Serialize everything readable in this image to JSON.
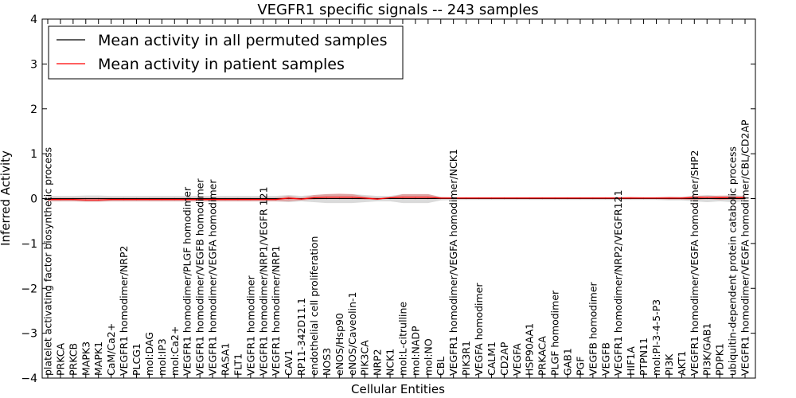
{
  "chart_data": {
    "type": "line",
    "title": "VEGFR1 specific signals -- 243 samples",
    "xlabel": "Cellular Entities",
    "ylabel": "Inferred Activity",
    "ylim": [
      -4,
      4
    ],
    "yticks": [
      "−4",
      "−3",
      "−2",
      "−1",
      "0",
      "1",
      "2",
      "3",
      "4"
    ],
    "grid": false,
    "legend_position": "top-left",
    "categories": [
      "platelet activating factor biosynthetic process",
      "PRKCA",
      "PRKCB",
      "MAPK3",
      "MAPK1",
      "CaM/Ca2+",
      "VEGFR1 homodimer/NRP2",
      "PLCG1",
      "mol:DAG",
      "mol:IP3",
      "mol:Ca2+",
      "VEGFR1 homodimer/PLGF homodimer",
      "VEGFR1 homodimer/VEGFB homodimer",
      "VEGFR1 homodimer/VEGFA homodimer",
      "RASA1",
      "FLT1",
      "VEGFR1 homodimer",
      "VEGFR1 homodimer/NRP1/VEGFR 121",
      "VEGFR1 homodimer/NRP1",
      "CAV1",
      "RP11-342D11.1",
      "endothelial cell proliferation",
      "NOS3",
      "eNOS/Hsp90",
      "eNOS/Caveolin-1",
      "PIK3CA",
      "NRP2",
      "NCK1",
      "mol:L-citrulline",
      "mol:NADP",
      "mol:NO",
      "CBL",
      "VEGFR1 homodimer/VEGFA homodimer/NCK1",
      "PIK3R1",
      "VEGFA homodimer",
      "CALM1",
      "CD2AP",
      "VEGFA",
      "HSP90AA1",
      "PRKACA",
      "PLGF homodimer",
      "GAB1",
      "PGF",
      "VEGFB homodimer",
      "VEGFB",
      "VEGFR1 homodimer/NRP2/VEGFR121",
      "HIF1A",
      "PTPN11",
      "mol:PI-3-4-5-P3",
      "PI3K",
      "AKT1",
      "VEGFR1 homodimer/VEGFA homodimer/SHP2",
      "PI3K/GAB1",
      "PDPK1",
      "ubiquitin-dependent protein catabolic process",
      "VEGFR1 homodimer/VEGFA homodimer/CBL/CD2AP"
    ],
    "series": [
      {
        "name": "Mean activity in all permuted samples",
        "color": "#000000",
        "values": [
          0,
          0,
          0,
          0,
          0,
          0,
          0,
          0,
          0,
          0,
          0,
          0,
          0,
          0,
          0,
          0,
          0,
          0,
          0,
          0,
          0,
          0,
          0,
          0,
          0,
          0,
          0,
          0,
          0,
          0,
          0,
          0,
          0,
          0,
          0,
          0,
          0,
          0,
          0,
          0,
          0,
          0,
          0,
          0,
          0,
          0,
          0,
          0,
          0,
          0,
          0,
          0,
          0,
          0,
          0,
          0
        ],
        "band_upper": [
          0.06,
          0.06,
          0.06,
          0.07,
          0.07,
          0.06,
          0.06,
          0.06,
          0.06,
          0.06,
          0.06,
          0.06,
          0.06,
          0.06,
          0.06,
          0.06,
          0.06,
          0.06,
          0.06,
          0.08,
          0.06,
          0.08,
          0.1,
          0.1,
          0.1,
          0.08,
          0.06,
          0.06,
          0.1,
          0.1,
          0.1,
          0.04,
          0.03,
          0.03,
          0.03,
          0.03,
          0.03,
          0.03,
          0.03,
          0.03,
          0.03,
          0.03,
          0.03,
          0.03,
          0.03,
          0.03,
          0.03,
          0.03,
          0.03,
          0.04,
          0.04,
          0.06,
          0.08,
          0.06,
          0.08,
          0.06
        ],
        "band_lower": [
          -0.06,
          -0.06,
          -0.06,
          -0.07,
          -0.07,
          -0.06,
          -0.06,
          -0.06,
          -0.06,
          -0.06,
          -0.06,
          -0.06,
          -0.06,
          -0.06,
          -0.06,
          -0.06,
          -0.06,
          -0.06,
          -0.06,
          -0.08,
          -0.06,
          -0.08,
          -0.1,
          -0.1,
          -0.1,
          -0.08,
          -0.06,
          -0.06,
          -0.1,
          -0.1,
          -0.1,
          -0.04,
          -0.03,
          -0.03,
          -0.03,
          -0.03,
          -0.03,
          -0.03,
          -0.03,
          -0.03,
          -0.03,
          -0.03,
          -0.03,
          -0.03,
          -0.03,
          -0.03,
          -0.03,
          -0.03,
          -0.03,
          -0.04,
          -0.04,
          -0.06,
          -0.08,
          -0.06,
          -0.08,
          -0.06
        ]
      },
      {
        "name": "Mean activity in patient samples",
        "color": "#ff0000",
        "values": [
          -0.02,
          -0.02,
          -0.02,
          -0.03,
          -0.03,
          -0.02,
          -0.02,
          -0.02,
          -0.02,
          -0.02,
          -0.02,
          -0.02,
          -0.02,
          -0.02,
          -0.02,
          -0.02,
          -0.02,
          -0.02,
          -0.02,
          0.01,
          -0.01,
          0.02,
          0.03,
          0.03,
          0.03,
          0.01,
          -0.01,
          0.02,
          0.03,
          0.03,
          0.03,
          0.01,
          0.01,
          0.01,
          0.01,
          0.01,
          0.01,
          0.01,
          0.01,
          0.01,
          0.01,
          0.01,
          0.01,
          0.01,
          0.01,
          0.01,
          0.01,
          0.01,
          0.01,
          0.01,
          0.01,
          0.02,
          0.03,
          0.02,
          0.02,
          0.02
        ],
        "band_upper": [
          0.02,
          0.02,
          0.02,
          0.02,
          0.02,
          0.02,
          0.02,
          0.02,
          0.02,
          0.02,
          0.02,
          0.02,
          0.02,
          0.02,
          0.02,
          0.02,
          0.02,
          0.02,
          0.02,
          0.06,
          0.02,
          0.08,
          0.1,
          0.11,
          0.1,
          0.05,
          0.02,
          0.03,
          0.1,
          0.1,
          0.1,
          0.03,
          0.03,
          0.03,
          0.03,
          0.03,
          0.03,
          0.03,
          0.03,
          0.03,
          0.03,
          0.03,
          0.03,
          0.03,
          0.03,
          0.03,
          0.04,
          0.03,
          0.03,
          0.04,
          0.03,
          0.07,
          0.05,
          0.07,
          0.06,
          0.05
        ],
        "band_lower": [
          -0.06,
          -0.06,
          -0.06,
          -0.07,
          -0.07,
          -0.06,
          -0.06,
          -0.06,
          -0.06,
          -0.06,
          -0.06,
          -0.06,
          -0.06,
          -0.06,
          -0.06,
          -0.06,
          -0.06,
          -0.06,
          -0.06,
          -0.06,
          -0.04,
          -0.02,
          -0.01,
          -0.01,
          -0.01,
          -0.02,
          -0.03,
          0.0,
          -0.01,
          -0.01,
          -0.01,
          -0.01,
          -0.01,
          -0.01,
          -0.01,
          -0.01,
          -0.01,
          -0.01,
          -0.01,
          -0.01,
          -0.01,
          -0.01,
          -0.01,
          -0.01,
          -0.01,
          -0.01,
          -0.01,
          -0.01,
          -0.01,
          -0.02,
          -0.02,
          -0.03,
          -0.01,
          -0.03,
          -0.02,
          -0.02
        ]
      }
    ]
  }
}
